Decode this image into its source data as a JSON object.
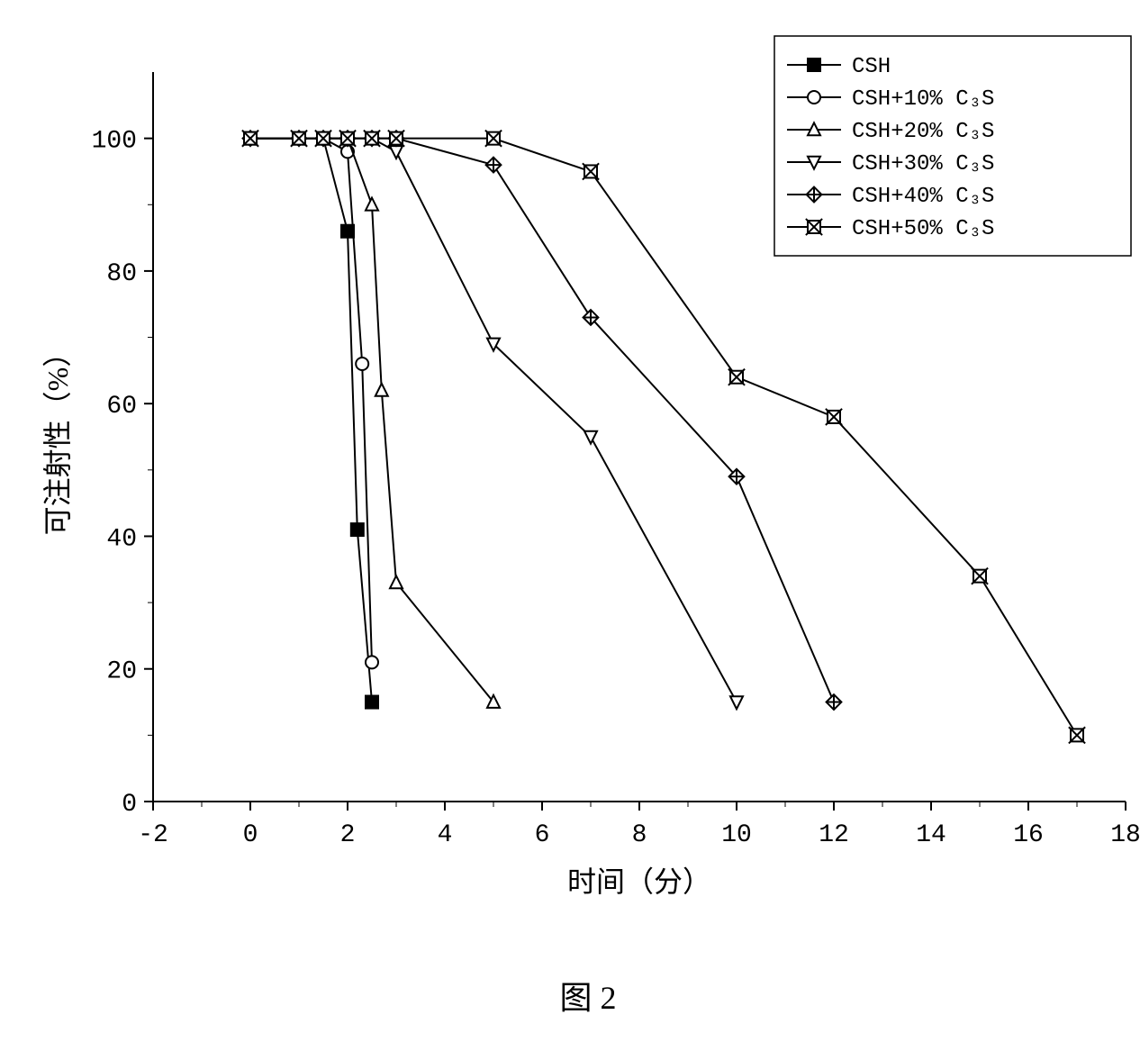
{
  "chart": {
    "type": "line",
    "figure_caption": "图 2",
    "x_axis": {
      "label": "时间（分）",
      "lim": [
        -2,
        18
      ],
      "ticks": [
        -2,
        0,
        2,
        4,
        6,
        8,
        10,
        12,
        14,
        16,
        18
      ],
      "label_fontsize": 32,
      "tick_fontsize": 28
    },
    "y_axis": {
      "label": "可注射性（%）",
      "lim": [
        0,
        110
      ],
      "ticks": [
        0,
        20,
        40,
        60,
        80,
        100
      ],
      "label_fontsize": 32,
      "tick_fontsize": 28
    },
    "colors": {
      "line": "#000000",
      "background": "#ffffff",
      "axis": "#000000",
      "aux_tone": "#808080"
    },
    "line_width": 2,
    "marker_stroke_width": 2,
    "marker_size": 7,
    "series": [
      {
        "name": "CSH",
        "legend": "CSH",
        "marker": "square-filled",
        "points": [
          [
            0,
            100
          ],
          [
            1,
            100
          ],
          [
            1.5,
            100
          ],
          [
            2,
            86
          ],
          [
            2.2,
            41
          ],
          [
            2.5,
            15
          ]
        ]
      },
      {
        "name": "CSH+10% C3S",
        "legend": "CSH+10% C₃S",
        "marker": "circle-open",
        "points": [
          [
            0,
            100
          ],
          [
            1,
            100
          ],
          [
            1.5,
            100
          ],
          [
            2,
            98
          ],
          [
            2.3,
            66
          ],
          [
            2.5,
            21
          ]
        ]
      },
      {
        "name": "CSH+20% C3S",
        "legend": "CSH+20% C₃S",
        "marker": "triangle-up-open",
        "points": [
          [
            0,
            100
          ],
          [
            1,
            100
          ],
          [
            1.5,
            100
          ],
          [
            2,
            100
          ],
          [
            2.5,
            90
          ],
          [
            2.7,
            62
          ],
          [
            3,
            33
          ],
          [
            5,
            15
          ]
        ]
      },
      {
        "name": "CSH+30% C3S",
        "legend": "CSH+30% C₃S",
        "marker": "triangle-down-open",
        "points": [
          [
            0,
            100
          ],
          [
            1,
            100
          ],
          [
            1.5,
            100
          ],
          [
            2,
            100
          ],
          [
            2.5,
            100
          ],
          [
            3,
            98
          ],
          [
            5,
            69
          ],
          [
            7,
            55
          ],
          [
            10,
            15
          ]
        ]
      },
      {
        "name": "CSH+40% C3S",
        "legend": "CSH+40% C₃S",
        "marker": "diamond-cross",
        "points": [
          [
            0,
            100
          ],
          [
            1,
            100
          ],
          [
            1.5,
            100
          ],
          [
            2,
            100
          ],
          [
            2.5,
            100
          ],
          [
            3,
            100
          ],
          [
            5,
            96
          ],
          [
            7,
            73
          ],
          [
            10,
            49
          ],
          [
            12,
            15
          ]
        ]
      },
      {
        "name": "CSH+50% C3S",
        "legend": "CSH+50% C₃S",
        "marker": "square-x",
        "points": [
          [
            0,
            100
          ],
          [
            1,
            100
          ],
          [
            1.5,
            100
          ],
          [
            2,
            100
          ],
          [
            2.5,
            100
          ],
          [
            3,
            100
          ],
          [
            5,
            100
          ],
          [
            7,
            95
          ],
          [
            10,
            64
          ],
          [
            12,
            58
          ],
          [
            15,
            34
          ],
          [
            17,
            10
          ]
        ]
      }
    ],
    "legend": {
      "position": "top-right",
      "border_color": "#000000",
      "background": "#ffffff",
      "fontsize": 24
    }
  }
}
